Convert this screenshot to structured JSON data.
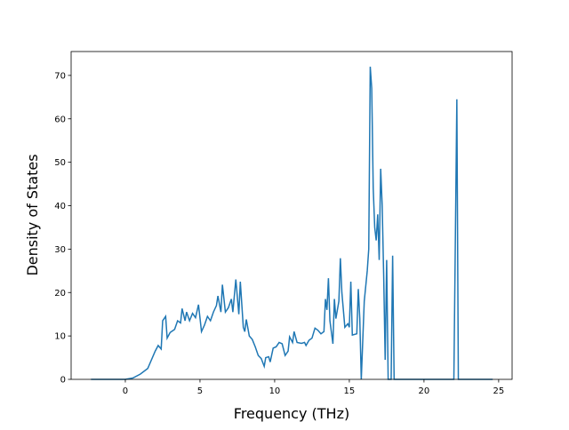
{
  "chart_data": {
    "type": "line",
    "xlabel": "Frequency (THz)",
    "ylabel": "Density of States",
    "x": [
      -2.3,
      0,
      0.5,
      1,
      1.5,
      2,
      2.2,
      2.4,
      2.5,
      2.7,
      2.8,
      3,
      3.3,
      3.5,
      3.7,
      3.8,
      4,
      4.1,
      4.3,
      4.5,
      4.7,
      4.9,
      5.1,
      5.3,
      5.5,
      5.7,
      5.9,
      6.1,
      6.2,
      6.4,
      6.5,
      6.7,
      6.9,
      7.1,
      7.2,
      7.4,
      7.6,
      7.7,
      7.9,
      8,
      8.1,
      8.3,
      8.5,
      8.7,
      8.9,
      9.1,
      9.3,
      9.4,
      9.6,
      9.7,
      9.9,
      10.1,
      10.3,
      10.5,
      10.7,
      10.9,
      11,
      11.2,
      11.3,
      11.5,
      11.8,
      12,
      12.1,
      12.3,
      12.5,
      12.7,
      12.9,
      13.1,
      13.3,
      13.4,
      13.5,
      13.6,
      13.7,
      13.9,
      14,
      14.1,
      14.3,
      14.4,
      14.5,
      14.7,
      14.9,
      15,
      15.1,
      15.2,
      15.5,
      15.6,
      15.7,
      15.8,
      16,
      16.2,
      16.3,
      16.4,
      16.5,
      16.6,
      16.7,
      16.8,
      16.9,
      17,
      17.1,
      17.2,
      17.3,
      17.4,
      17.5,
      17.6,
      17.8,
      17.9,
      18,
      22,
      22.2,
      22.3,
      24.6
    ],
    "series": [
      {
        "name": "DOS",
        "color": "#1f77b4",
        "values": [
          0,
          0,
          0.3,
          1.2,
          2.5,
          6.5,
          7.8,
          7,
          13.5,
          14.5,
          9.5,
          10.8,
          11.5,
          13.5,
          13,
          16.3,
          13.5,
          15.5,
          13.5,
          15.2,
          14.2,
          17.2,
          11,
          12.5,
          14.5,
          13.5,
          15.5,
          17,
          19.2,
          15.5,
          21.8,
          15.5,
          16.5,
          18.5,
          15.5,
          23,
          15,
          22.5,
          12,
          11,
          13.8,
          10,
          9.2,
          7.5,
          5.5,
          4.8,
          3,
          5,
          5.2,
          4,
          7.2,
          7.5,
          8.5,
          8.2,
          5.5,
          6.5,
          9.8,
          8.5,
          11,
          8.5,
          8.3,
          8.5,
          7.8,
          9,
          9.5,
          11.8,
          11.3,
          10.5,
          11,
          18.5,
          16,
          23.3,
          13.5,
          8.2,
          18.5,
          14,
          18,
          27.9,
          20,
          12,
          12.8,
          12,
          22.5,
          10.2,
          10.5,
          20.8,
          14,
          0,
          18,
          25,
          30,
          72,
          67,
          44,
          35,
          32,
          38,
          27.5,
          48.5,
          40,
          24,
          4.5,
          27.5,
          0,
          0,
          28.5,
          0,
          0,
          64.5,
          0,
          0
        ]
      }
    ],
    "xlim": [
      -3.63,
      25.9
    ],
    "ylim": [
      0,
      75.5
    ],
    "xticks": [
      0,
      5,
      10,
      15,
      20,
      25
    ],
    "yticks": [
      0,
      10,
      20,
      30,
      40,
      50,
      60,
      70
    ]
  }
}
